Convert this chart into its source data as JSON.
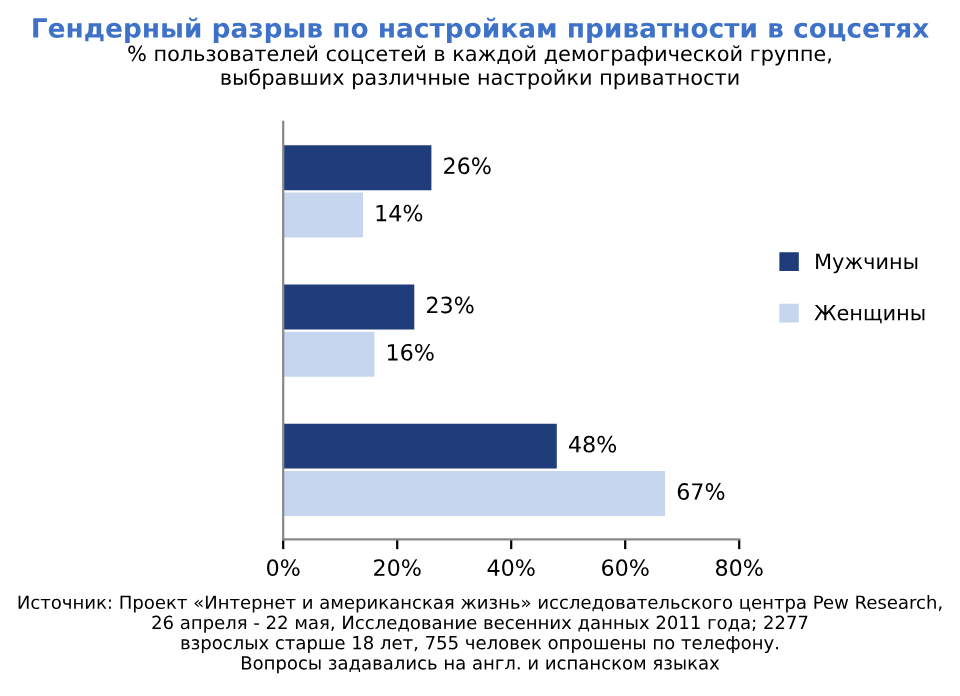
{
  "chart_data": {
    "type": "bar",
    "orientation": "horizontal",
    "title": "Гендерный разрыв по настройкам приватности в соцсетях",
    "subtitle": "% пользователей соцсетей в каждой демографической группе,\nвыбравших различные настройки приватности",
    "categories": [
      null,
      null,
      null
    ],
    "series": [
      {
        "name": "Мужчины",
        "color": "#1f3d7a",
        "values": [
          26,
          23,
          48
        ],
        "value_labels": [
          "26%",
          "23%",
          "48%"
        ]
      },
      {
        "name": "Женщины",
        "color": "#c6d6ef",
        "values": [
          14,
          16,
          67
        ],
        "value_labels": [
          "14%",
          "16%",
          "67%"
        ]
      }
    ],
    "xlim": [
      0,
      80
    ],
    "xticks": [
      {
        "value": 0,
        "label": "0%"
      },
      {
        "value": 20,
        "label": "20%"
      },
      {
        "value": 40,
        "label": "40%"
      },
      {
        "value": 60,
        "label": "60%"
      },
      {
        "value": 80,
        "label": "80%"
      }
    ],
    "grid": false,
    "legend": "right",
    "annotations": [
      "Источник: Проект «Интернет и американская жизнь» исследовательского центра Pew Research,\n26 апреля - 22 мая, Исследование весенних данных 2011 года; 2277\nвзрослых старше 18 лет, 755 человек опрошены по телефону.\nВопросы задавались на англ. и испанском языках"
    ]
  }
}
